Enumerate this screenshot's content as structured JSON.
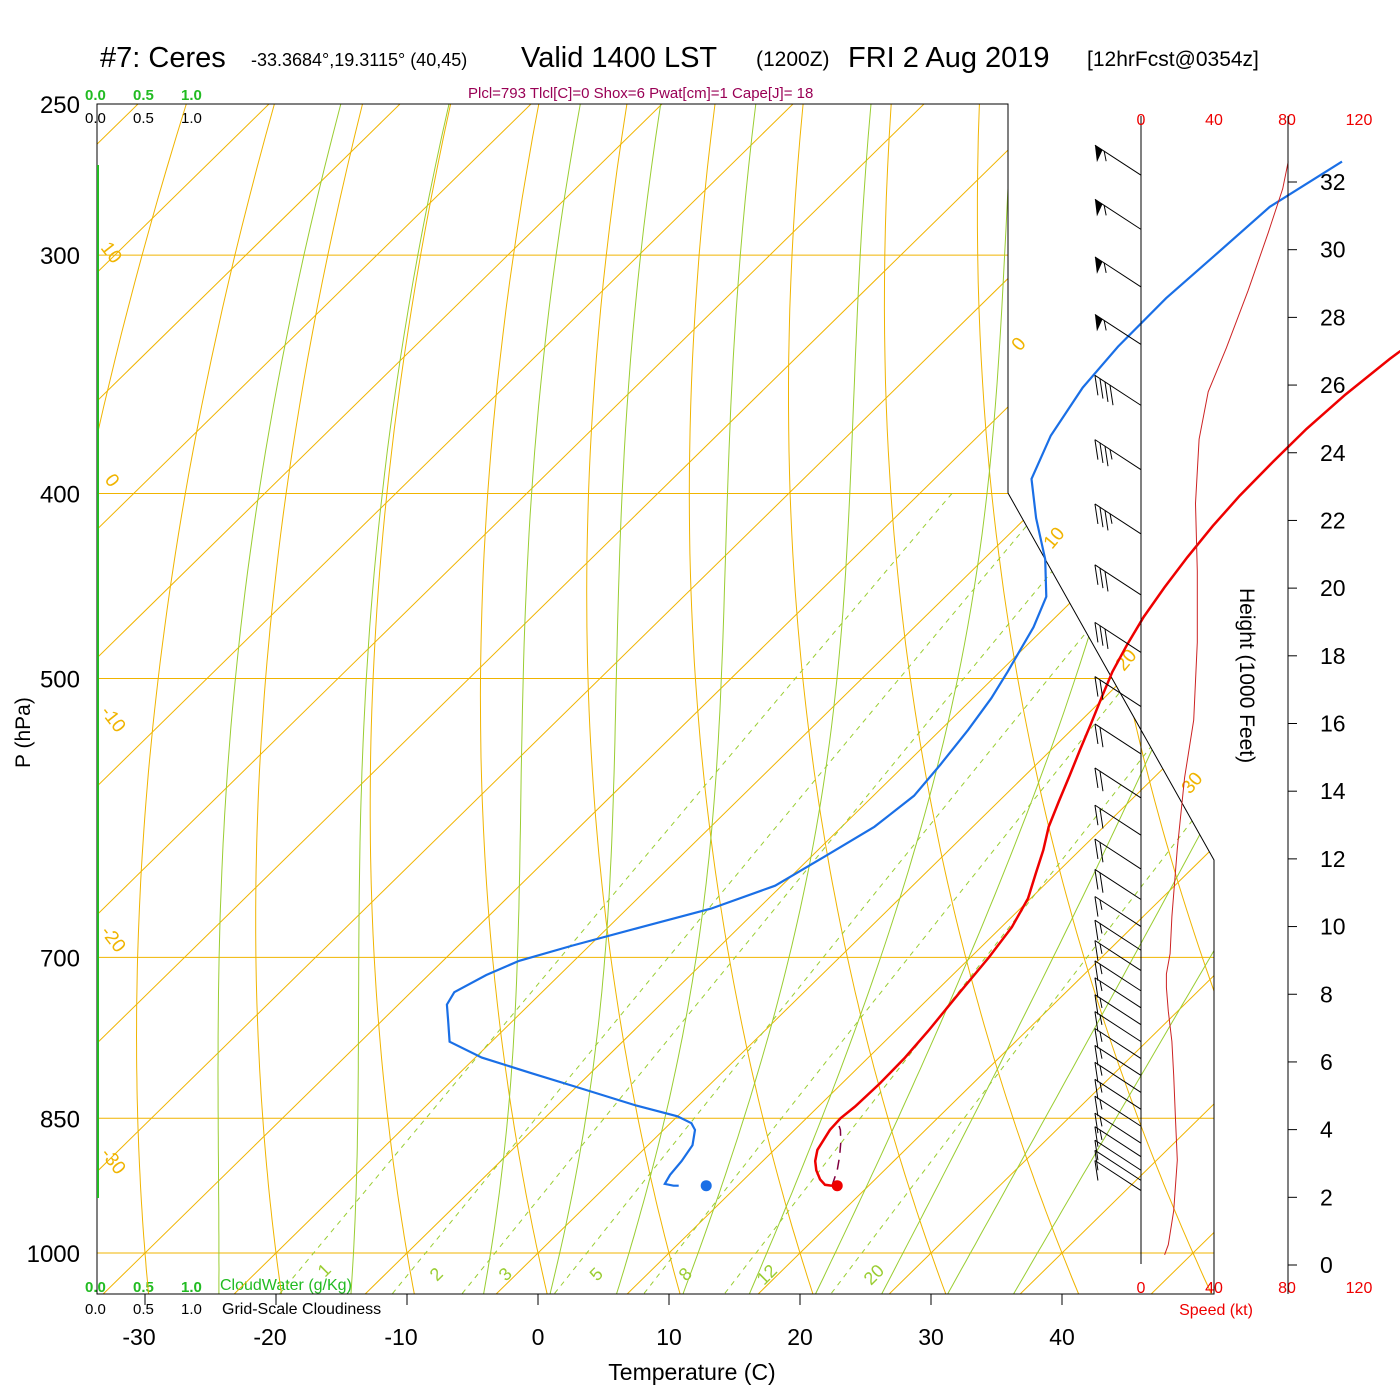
{
  "header": {
    "station": "#7: Ceres",
    "coords": "-33.3684°,19.3115° (40,45)",
    "valid": "Valid 1400 LST",
    "zulu": "(1200Z)",
    "date": "FRI 2 Aug 2019",
    "fcst": "[12hrFcst@0354z]",
    "indices": "Plcl=793 Tlcl[C]=0 Shox=6 Pwat[cm]=1 Cape[J]= 18"
  },
  "colors": {
    "temperature": "#ee0000",
    "dewpoint": "#1a6fe6",
    "isotherm": "#f0b400",
    "dry_adiabat": "#f0b400",
    "moist_adiabat": "#9acd32",
    "mixing_ratio": "#9acd32",
    "parcel": "#800040",
    "cloud_water": "#22bb22",
    "title_indices": "#990055",
    "speed": "#ee0000"
  },
  "chart_data": {
    "type": "line",
    "subtype": "skew-T log-P sounding",
    "xlabel": "Temperature (C)",
    "ylabel": "P (hPa)",
    "right_label": "Height (1000 Feet)",
    "x_ticks": [
      "-30",
      "-20",
      "-10",
      "0",
      "10",
      "20",
      "30",
      "40"
    ],
    "p_ticks": [
      "250",
      "300",
      "400",
      "500",
      "700",
      "850",
      "1000"
    ],
    "height_ticks": [
      "0",
      "2",
      "4",
      "6",
      "8",
      "10",
      "12",
      "14",
      "16",
      "18",
      "20",
      "22",
      "24",
      "26",
      "28",
      "30",
      "32"
    ],
    "isotherm_labels": [
      "10",
      "0",
      "-10",
      "-20",
      "-30",
      "0",
      "10",
      "20",
      "30"
    ],
    "mixing_ratio_labels": [
      "1",
      "2",
      "3",
      "5",
      "8",
      "12",
      "20"
    ],
    "cloud_scale_top_green": [
      "0.0",
      "0.5",
      "1.0"
    ],
    "cloud_scale_top_black": [
      "0.0",
      "0.5",
      "1.0"
    ],
    "cloud_scale_bottom_green": [
      "0.0",
      "0.5",
      "1.0"
    ],
    "cloud_scale_bottom_black": [
      "0.0",
      "0.5",
      "1.0"
    ],
    "cloud_water_label": "CloudWater (g/Kg)",
    "cloudiness_label": "Grid-Scale Cloudiness",
    "speed_ticks_top": [
      "0",
      "40",
      "80",
      "120"
    ],
    "speed_ticks_bottom": [
      "0",
      "40",
      "80",
      "120"
    ],
    "speed_label": "Speed (kt)",
    "series": [
      {
        "key": "temperature",
        "points": [
          [
            17.2,
            922
          ],
          [
            16.6,
            921
          ],
          [
            15.8,
            915
          ],
          [
            14.8,
            905
          ],
          [
            14.0,
            895
          ],
          [
            13.3,
            883
          ],
          [
            12.7,
            862
          ],
          [
            12.6,
            850
          ],
          [
            12.8,
            838
          ],
          [
            12.9,
            815
          ],
          [
            12.8,
            790
          ],
          [
            12.5,
            765
          ],
          [
            11.9,
            730
          ],
          [
            11.4,
            700
          ],
          [
            10.8,
            675
          ],
          [
            9.8,
            652
          ],
          [
            8.4,
            632
          ],
          [
            7.2,
            615
          ],
          [
            5.8,
            598
          ],
          [
            4.6,
            580
          ],
          [
            3.4,
            562
          ],
          [
            2.2,
            545
          ],
          [
            1.0,
            528
          ],
          [
            -0.2,
            512
          ],
          [
            -1.4,
            496
          ],
          [
            -2.4,
            480
          ],
          [
            -3.3,
            464
          ],
          [
            -4.0,
            448
          ],
          [
            -4.6,
            432
          ],
          [
            -5.1,
            416
          ],
          [
            -5.4,
            401
          ],
          [
            -5.5,
            385
          ],
          [
            -5.5,
            370
          ],
          [
            -5.2,
            355
          ],
          [
            -4.6,
            340
          ],
          [
            -3.5,
            323
          ],
          [
            -2.4,
            307
          ],
          [
            -1.2,
            292
          ],
          [
            -0.1,
            277
          ],
          [
            1.0,
            264
          ]
        ]
      },
      {
        "key": "dewpoint",
        "points": [
          [
            5.5,
            922
          ],
          [
            5.1,
            922
          ],
          [
            4.3,
            920
          ],
          [
            4.0,
            910
          ],
          [
            3.8,
            895
          ],
          [
            3.4,
            878
          ],
          [
            2.4,
            862
          ],
          [
            1.6,
            855
          ],
          [
            0.0,
            848
          ],
          [
            -4.0,
            837
          ],
          [
            -9.5,
            820
          ],
          [
            -14.5,
            805
          ],
          [
            -19.5,
            790
          ],
          [
            -23.2,
            775
          ],
          [
            -25.0,
            755
          ],
          [
            -26.3,
            741
          ],
          [
            -26.7,
            730
          ],
          [
            -25.6,
            715
          ],
          [
            -24.2,
            703
          ],
          [
            -21.3,
            690
          ],
          [
            -17.5,
            675
          ],
          [
            -13.6,
            660
          ],
          [
            -10.5,
            642
          ],
          [
            -9.0,
            620
          ],
          [
            -7.5,
            598
          ],
          [
            -6.9,
            576
          ],
          [
            -7.3,
            555
          ],
          [
            -7.9,
            532
          ],
          [
            -8.6,
            512
          ],
          [
            -9.4,
            496
          ],
          [
            -10.9,
            470
          ],
          [
            -12.3,
            453
          ],
          [
            -15.3,
            433
          ],
          [
            -19.2,
            412
          ],
          [
            -22.6,
            393
          ],
          [
            -24.5,
            373
          ],
          [
            -25.8,
            352
          ],
          [
            -26.3,
            335
          ],
          [
            -26.4,
            316
          ],
          [
            -26.0,
            300
          ],
          [
            -25.6,
            283
          ],
          [
            -23.6,
            268
          ]
        ]
      },
      {
        "key": "parcel",
        "points": [
          [
            17.2,
            922
          ],
          [
            16.4,
            905
          ],
          [
            15.5,
            890
          ],
          [
            14.5,
            875
          ],
          [
            13.5,
            862
          ],
          [
            12.8,
            855
          ]
        ]
      }
    ],
    "surface_points": {
      "temperature": [
        17.6,
        922
      ],
      "dewpoint": [
        7.6,
        922
      ]
    },
    "wind_speed_profile": [
      [
        13,
        0.3
      ],
      [
        15,
        0.6
      ],
      [
        18,
        1.6
      ],
      [
        20,
        3.1
      ],
      [
        19,
        4.3
      ],
      [
        18,
        5.6
      ],
      [
        17,
        6.6
      ],
      [
        15,
        7.5
      ],
      [
        14,
        8.2
      ],
      [
        14,
        8.6
      ],
      [
        16,
        9.2
      ],
      [
        17,
        10.3
      ],
      [
        20,
        12.3
      ],
      [
        24,
        14.4
      ],
      [
        29,
        16.1
      ],
      [
        31,
        18.4
      ],
      [
        31,
        20.5
      ],
      [
        30,
        22.5
      ],
      [
        32,
        24.4
      ],
      [
        37,
        25.8
      ],
      [
        47,
        27.1
      ],
      [
        59,
        28.8
      ],
      [
        70,
        30.5
      ],
      [
        78,
        31.8
      ],
      [
        81,
        32.6
      ]
    ],
    "wind_barbs": [
      {
        "height_kft": 32.2,
        "speed_kt": 55
      },
      {
        "height_kft": 30.6,
        "speed_kt": 55
      },
      {
        "height_kft": 28.9,
        "speed_kt": 55
      },
      {
        "height_kft": 27.2,
        "speed_kt": 55
      },
      {
        "height_kft": 25.4,
        "speed_kt": 40
      },
      {
        "height_kft": 23.5,
        "speed_kt": 35
      },
      {
        "height_kft": 21.6,
        "speed_kt": 35
      },
      {
        "height_kft": 19.8,
        "speed_kt": 30
      },
      {
        "height_kft": 18.1,
        "speed_kt": 30
      },
      {
        "height_kft": 16.5,
        "speed_kt": 20
      },
      {
        "height_kft": 15.1,
        "speed_kt": 20
      },
      {
        "height_kft": 13.8,
        "speed_kt": 20
      },
      {
        "height_kft": 12.7,
        "speed_kt": 20
      },
      {
        "height_kft": 11.7,
        "speed_kt": 20
      },
      {
        "height_kft": 10.8,
        "speed_kt": 20
      },
      {
        "height_kft": 10.0,
        "speed_kt": 15
      },
      {
        "height_kft": 9.3,
        "speed_kt": 15
      },
      {
        "height_kft": 8.7,
        "speed_kt": 15
      },
      {
        "height_kft": 8.1,
        "speed_kt": 15
      },
      {
        "height_kft": 7.6,
        "speed_kt": 15
      },
      {
        "height_kft": 7.1,
        "speed_kt": 15
      },
      {
        "height_kft": 6.6,
        "speed_kt": 15
      },
      {
        "height_kft": 6.1,
        "speed_kt": 15
      },
      {
        "height_kft": 5.6,
        "speed_kt": 15
      },
      {
        "height_kft": 5.1,
        "speed_kt": 15
      },
      {
        "height_kft": 4.6,
        "speed_kt": 15
      },
      {
        "height_kft": 4.1,
        "speed_kt": 15
      },
      {
        "height_kft": 3.6,
        "speed_kt": 15
      },
      {
        "height_kft": 3.2,
        "speed_kt": 15
      },
      {
        "height_kft": 2.8,
        "speed_kt": 10
      },
      {
        "height_kft": 2.5,
        "speed_kt": 10
      },
      {
        "height_kft": 2.2,
        "speed_kt": 10
      }
    ]
  }
}
